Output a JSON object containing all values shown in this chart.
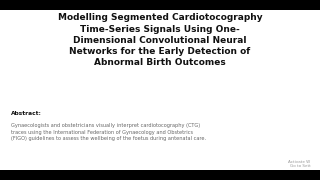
{
  "background_color": "#000000",
  "content_bg": "#ffffff",
  "top_bar_height": 0.055,
  "bottom_bar_height": 0.055,
  "title_lines": [
    "Modelling Segmented Cardiotocography",
    "Time-Series Signals Using One-",
    "Dimensional Convolutional Neural",
    "Networks for the Early Detection of",
    "Abnormal Birth Outcomes"
  ],
  "title_fontsize": 6.5,
  "abstract_label": "Abstract:",
  "abstract_fontsize": 4.2,
  "abstract_body": "Gynaecologists and obstetricians visually interpret cardiotocography (CTG)\ntraces using the International Federation of Gynaecology and Obstetrics\n(FIGO) guidelines to assess the wellbeing of the foetus during antenatal care.",
  "abstract_body_fontsize": 3.6,
  "watermark_text": "Activate W\nGo to Sett",
  "watermark_fontsize": 3.0,
  "text_color": "#111111",
  "abstract_text_color": "#666666",
  "watermark_color": "#999999"
}
